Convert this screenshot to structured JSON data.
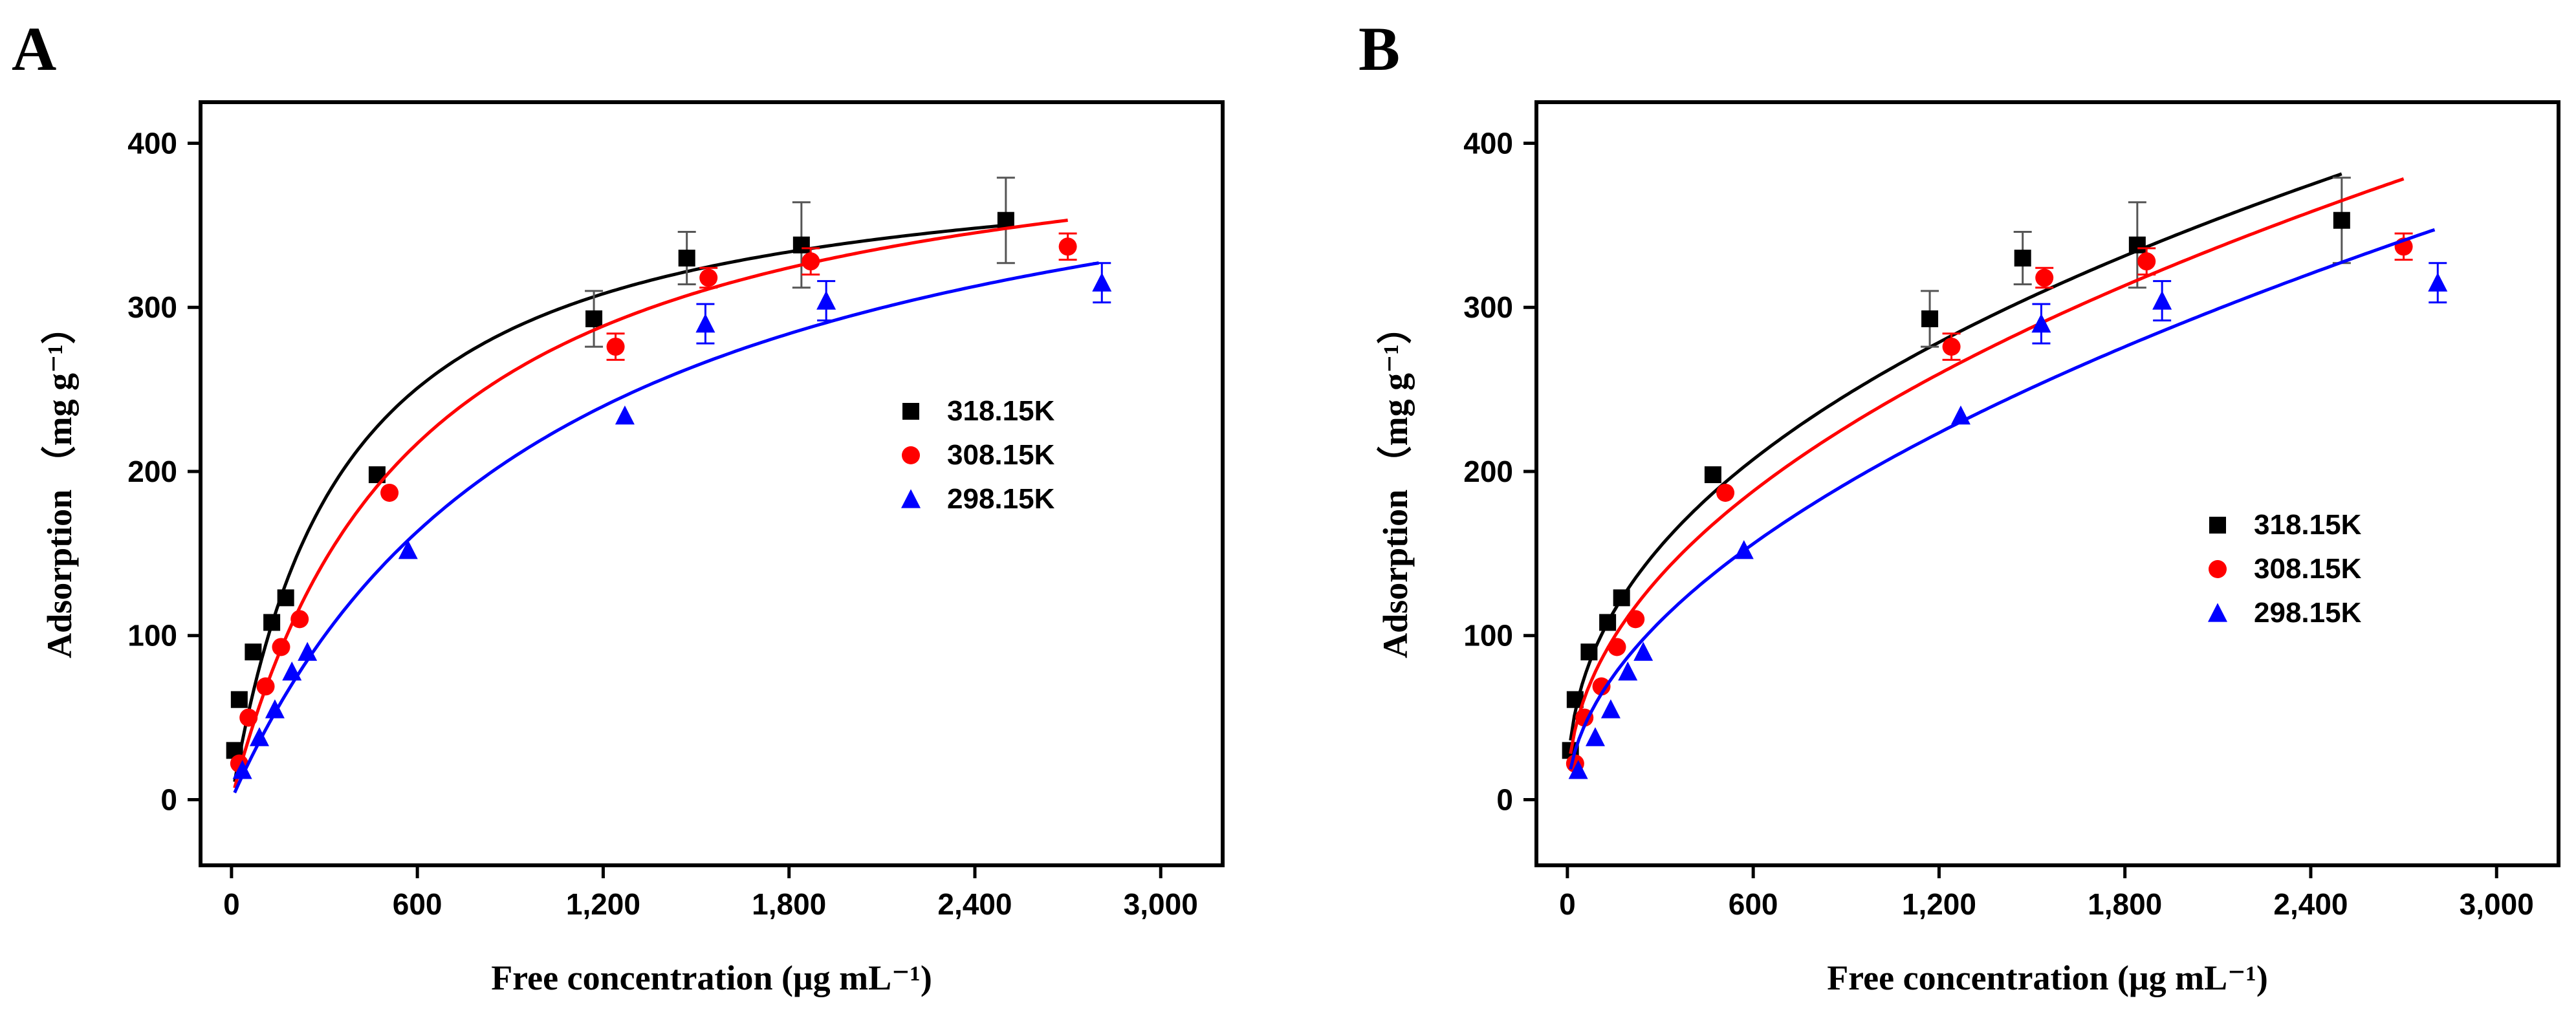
{
  "figure": {
    "panel_letters": [
      "A",
      "B"
    ]
  },
  "chart_data": [
    {
      "type": "scatter",
      "panel": "A",
      "xlabel": "Free concentration (μg mL⁻¹)",
      "ylabel": "Adsorption （mg g⁻¹）",
      "xlim": [
        -100,
        3200
      ],
      "ylim": [
        -40,
        425
      ],
      "xticks": [
        0,
        600,
        1200,
        1800,
        2400,
        3000
      ],
      "xtick_labels": [
        "0",
        "600",
        "1,200",
        "1,800",
        "2,400",
        "3,000"
      ],
      "yticks": [
        0,
        100,
        200,
        300,
        400
      ],
      "ytick_labels": [
        "0",
        "100",
        "200",
        "300",
        "400"
      ],
      "grid": false,
      "legend_position": "right-middle",
      "series": [
        {
          "name": "318.15K",
          "color": "#000000",
          "marker": "square",
          "x": [
            10,
            25,
            70,
            130,
            175,
            470,
            1170,
            1470,
            1840,
            2500
          ],
          "y": [
            30,
            61,
            90,
            108,
            123,
            198,
            293,
            330,
            338,
            353
          ],
          "error": [
            0,
            0,
            0,
            0,
            0,
            0,
            17,
            16,
            26,
            26
          ],
          "fit": {
            "model": "langmuir",
            "qmax": 400,
            "K": 0.0028,
            "x_range": [
              10,
              2500
            ]
          }
        },
        {
          "name": "308.15K",
          "color": "#ff0000",
          "marker": "circle",
          "x": [
            25,
            55,
            110,
            160,
            220,
            510,
            1240,
            1540,
            1870,
            2700
          ],
          "y": [
            22,
            50,
            69,
            93,
            110,
            187,
            276,
            318,
            328,
            337
          ],
          "error": [
            0,
            0,
            0,
            0,
            0,
            0,
            8,
            6,
            8,
            8
          ],
          "fit": {
            "model": "langmuir",
            "qmax": 430,
            "K": 0.0017,
            "x_range": [
              10,
              2700
            ]
          }
        },
        {
          "name": "298.15K",
          "color": "#0000ff",
          "marker": "triangle",
          "x": [
            35,
            90,
            140,
            195,
            245,
            570,
            1270,
            1530,
            1920,
            2810
          ],
          "y": [
            18,
            38,
            55,
            78,
            90,
            152,
            234,
            290,
            304,
            315
          ],
          "error": [
            0,
            0,
            0,
            0,
            0,
            0,
            0,
            12,
            12,
            12
          ],
          "fit": {
            "model": "langmuir",
            "qmax": 450,
            "K": 0.00095,
            "x_range": [
              10,
              2800
            ]
          }
        }
      ]
    },
    {
      "type": "scatter",
      "panel": "B",
      "xlabel": "Free concentration (μg mL⁻¹)",
      "ylabel": "Adsorption （mg g⁻¹）",
      "xlim": [
        -100,
        3200
      ],
      "ylim": [
        -40,
        425
      ],
      "xticks": [
        0,
        600,
        1200,
        1800,
        2400,
        3000
      ],
      "xtick_labels": [
        "0",
        "600",
        "1,200",
        "1,800",
        "2,400",
        "3,000"
      ],
      "yticks": [
        0,
        100,
        200,
        300,
        400
      ],
      "ytick_labels": [
        "0",
        "100",
        "200",
        "300",
        "400"
      ],
      "grid": false,
      "legend_position": "right-middle",
      "series": [
        {
          "name": "318.15K",
          "color": "#000000",
          "marker": "square",
          "x": [
            10,
            25,
            70,
            130,
            175,
            470,
            1170,
            1470,
            1840,
            2500
          ],
          "y": [
            30,
            61,
            90,
            108,
            123,
            198,
            293,
            330,
            338,
            353
          ],
          "error": [
            0,
            0,
            0,
            0,
            0,
            0,
            17,
            16,
            26,
            26
          ],
          "fit": {
            "model": "freundlich",
            "Kf": 13.5,
            "n": 0.427,
            "x_range": [
              10,
              2500
            ]
          }
        },
        {
          "name": "308.15K",
          "color": "#ff0000",
          "marker": "circle",
          "x": [
            25,
            55,
            110,
            160,
            220,
            510,
            1240,
            1540,
            1870,
            2700
          ],
          "y": [
            22,
            50,
            69,
            93,
            110,
            187,
            276,
            318,
            328,
            337
          ],
          "error": [
            0,
            0,
            0,
            0,
            0,
            0,
            8,
            6,
            8,
            8
          ],
          "fit": {
            "model": "freundlich",
            "Kf": 9.6,
            "n": 0.465,
            "x_range": [
              10,
              2700
            ]
          }
        },
        {
          "name": "298.15K",
          "color": "#0000ff",
          "marker": "triangle",
          "x": [
            35,
            90,
            140,
            195,
            245,
            570,
            1270,
            1530,
            1920,
            2810
          ],
          "y": [
            18,
            38,
            55,
            78,
            90,
            152,
            234,
            290,
            304,
            315
          ],
          "error": [
            0,
            0,
            0,
            0,
            0,
            0,
            0,
            12,
            12,
            12
          ],
          "fit": {
            "model": "freundlich",
            "Kf": 5.6,
            "n": 0.52,
            "x_range": [
              10,
              2800
            ]
          }
        }
      ]
    }
  ]
}
